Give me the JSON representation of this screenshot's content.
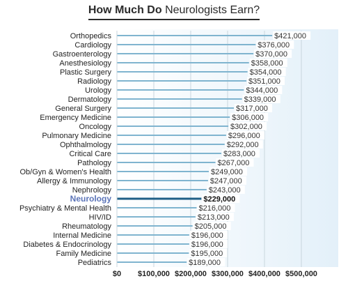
{
  "title_bold": "How Much Do",
  "title_rest": "Neurologists Earn?",
  "colors": {
    "bar": "#7fb4cf",
    "bar_highlight": "#1f5f86",
    "highlight_label": "#5b74b8",
    "grid": "#c9d6de",
    "panel": "#eaf4fb"
  },
  "chart_data": {
    "type": "bar",
    "orientation": "horizontal",
    "title": "How Much Do Neurologists Earn?",
    "highlight": "Neurology",
    "xlim": [
      0,
      600000
    ],
    "xticks": [
      "$0",
      "$100,000",
      "$200,000",
      "$300,000",
      "$400,000",
      "$500,000"
    ],
    "xtick_values": [
      0,
      100000,
      200000,
      300000,
      400000,
      500000
    ],
    "grid": true,
    "categories": [
      "Orthopedics",
      "Cardiology",
      "Gastroenterology",
      "Anesthesiology",
      "Plastic Surgery",
      "Radiology",
      "Urology",
      "Dermatology",
      "General Surgery",
      "Emergency Medicine",
      "Oncology",
      "Pulmonary Medicine",
      "Ophthalmology",
      "Critical Care",
      "Pathology",
      "Ob/Gyn & Women's Health",
      "Allergy & Immunology",
      "Nephrology",
      "Neurology",
      "Psychiatry & Mental Health",
      "HIV/ID",
      "Rheumatology",
      "Internal Medicine",
      "Diabetes & Endocrinology",
      "Family Medicine",
      "Pediatrics"
    ],
    "values": [
      421000,
      376000,
      370000,
      358000,
      354000,
      351000,
      344000,
      339000,
      317000,
      306000,
      302000,
      296000,
      292000,
      283000,
      267000,
      249000,
      247000,
      243000,
      229000,
      216000,
      213000,
      205000,
      196000,
      196000,
      195000,
      189000
    ],
    "value_labels": [
      "$421,000",
      "$376,000",
      "$370,000",
      "$358,000",
      "$354,000",
      "$351,000",
      "$344,000",
      "$339,000",
      "$317,000",
      "$306,000",
      "$302,000",
      "$296,000",
      "$292,000",
      "$283,000",
      "$267,000",
      "$249,000",
      "$247,000",
      "$243,000",
      "$229,000",
      "$216,000",
      "$213,000",
      "$205,000",
      "$196,000",
      "$196,000",
      "$195,000",
      "$189,000"
    ]
  }
}
